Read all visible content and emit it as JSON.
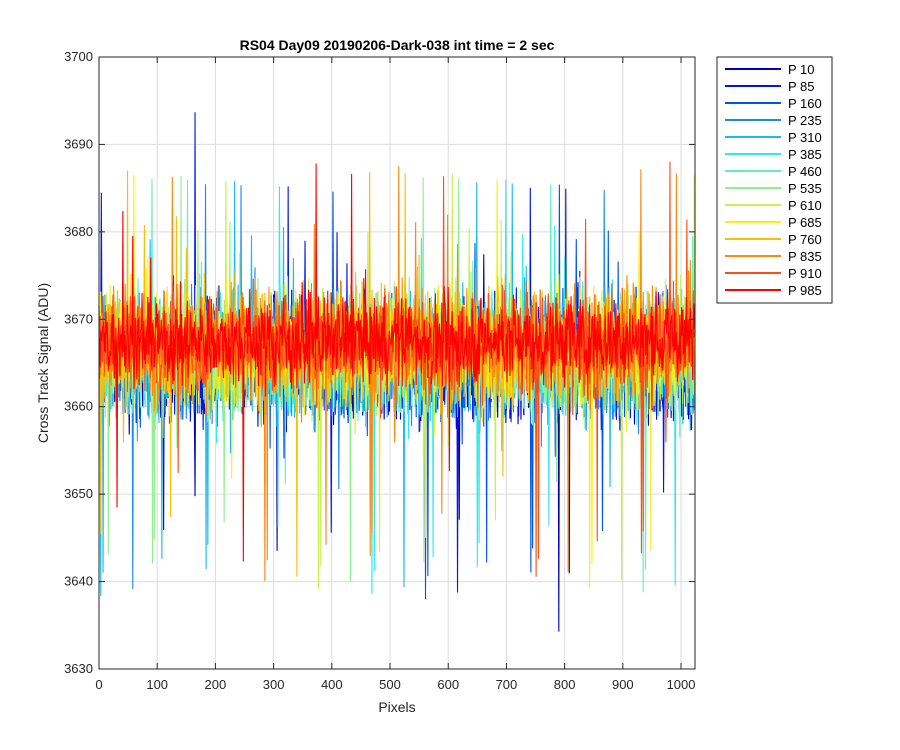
{
  "chart_data": {
    "type": "line",
    "title": "RS04 Day09 20190206-Dark-038 int time = 2 sec",
    "xlabel": "Pixels",
    "ylabel": "Cross Track Signal (ADU)",
    "xlim": [
      0,
      1024
    ],
    "ylim": [
      3630,
      3700
    ],
    "xticks": [
      0,
      100,
      200,
      300,
      400,
      500,
      600,
      700,
      800,
      900,
      1000
    ],
    "yticks": [
      3630,
      3640,
      3650,
      3660,
      3670,
      3680,
      3690,
      3700
    ],
    "grid": true,
    "legend_position": "outside-top-right",
    "series": [
      {
        "name": "P 10",
        "color": "#0000b8",
        "mean": 3665.0,
        "spread": 7
      },
      {
        "name": "P 85",
        "color": "#0016e8",
        "mean": 3665.2,
        "spread": 7
      },
      {
        "name": "P 160",
        "color": "#0052f0",
        "mean": 3665.4,
        "spread": 7
      },
      {
        "name": "P 235",
        "color": "#1a8cf0",
        "mean": 3665.6,
        "spread": 7
      },
      {
        "name": "P 310",
        "color": "#18baf0",
        "mean": 3665.8,
        "spread": 7
      },
      {
        "name": "P 385",
        "color": "#2eeaea",
        "mean": 3666.0,
        "spread": 7
      },
      {
        "name": "P 460",
        "color": "#60f0c0",
        "mean": 3666.2,
        "spread": 7
      },
      {
        "name": "P 535",
        "color": "#90f090",
        "mean": 3666.4,
        "spread": 7
      },
      {
        "name": "P 610",
        "color": "#c8f050",
        "mean": 3666.6,
        "spread": 7
      },
      {
        "name": "P 685",
        "color": "#f4f020",
        "mean": 3666.8,
        "spread": 7
      },
      {
        "name": "P 760",
        "color": "#f8c000",
        "mean": 3667.0,
        "spread": 7
      },
      {
        "name": "P 835",
        "color": "#f88a10",
        "mean": 3667.2,
        "spread": 6.5
      },
      {
        "name": "P 910",
        "color": "#f85018",
        "mean": 3667.4,
        "spread": 6
      },
      {
        "name": "P 985",
        "color": "#ff0000",
        "mean": 3667.6,
        "spread": 5.5
      }
    ],
    "x_count": 1024
  }
}
